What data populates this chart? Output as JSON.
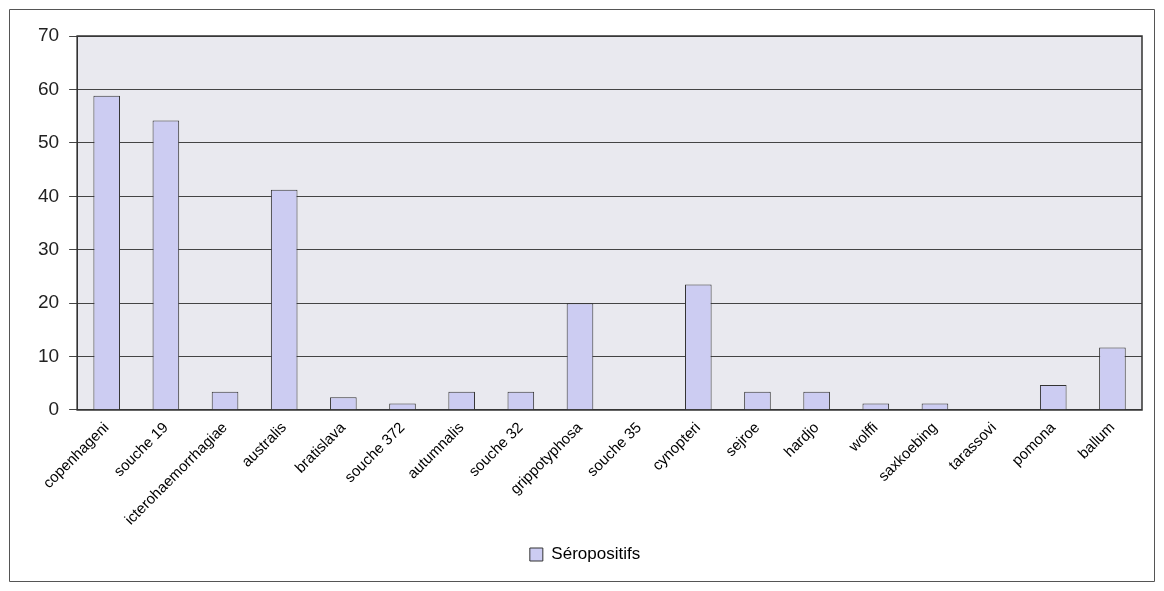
{
  "chart_data": {
    "type": "bar",
    "categories": [
      "copenhageni",
      "souche 19",
      "icterohaemorrhagiae",
      "australis",
      "bratislava",
      "souche 372",
      "autumnalis",
      "souche 32",
      "grippotyphosa",
      "souche 35",
      "cynopteri",
      "sejroe",
      "hardjo",
      "wolffi",
      "saxkoebing",
      "tarassovi",
      "pomona",
      "ballum"
    ],
    "series": [
      {
        "name": "Séropositifs",
        "color": "#ccccf2",
        "values": [
          58.8,
          54.2,
          3.4,
          41.2,
          2.4,
          1.2,
          3.4,
          3.4,
          20,
          0,
          23.5,
          3.4,
          3.4,
          1.2,
          1.2,
          0,
          4.7,
          11.7
        ]
      }
    ],
    "ylim": [
      0,
      70
    ],
    "yticks": [
      0,
      10,
      20,
      30,
      40,
      50,
      60,
      70
    ],
    "grid": "y",
    "legend": "bottom"
  }
}
